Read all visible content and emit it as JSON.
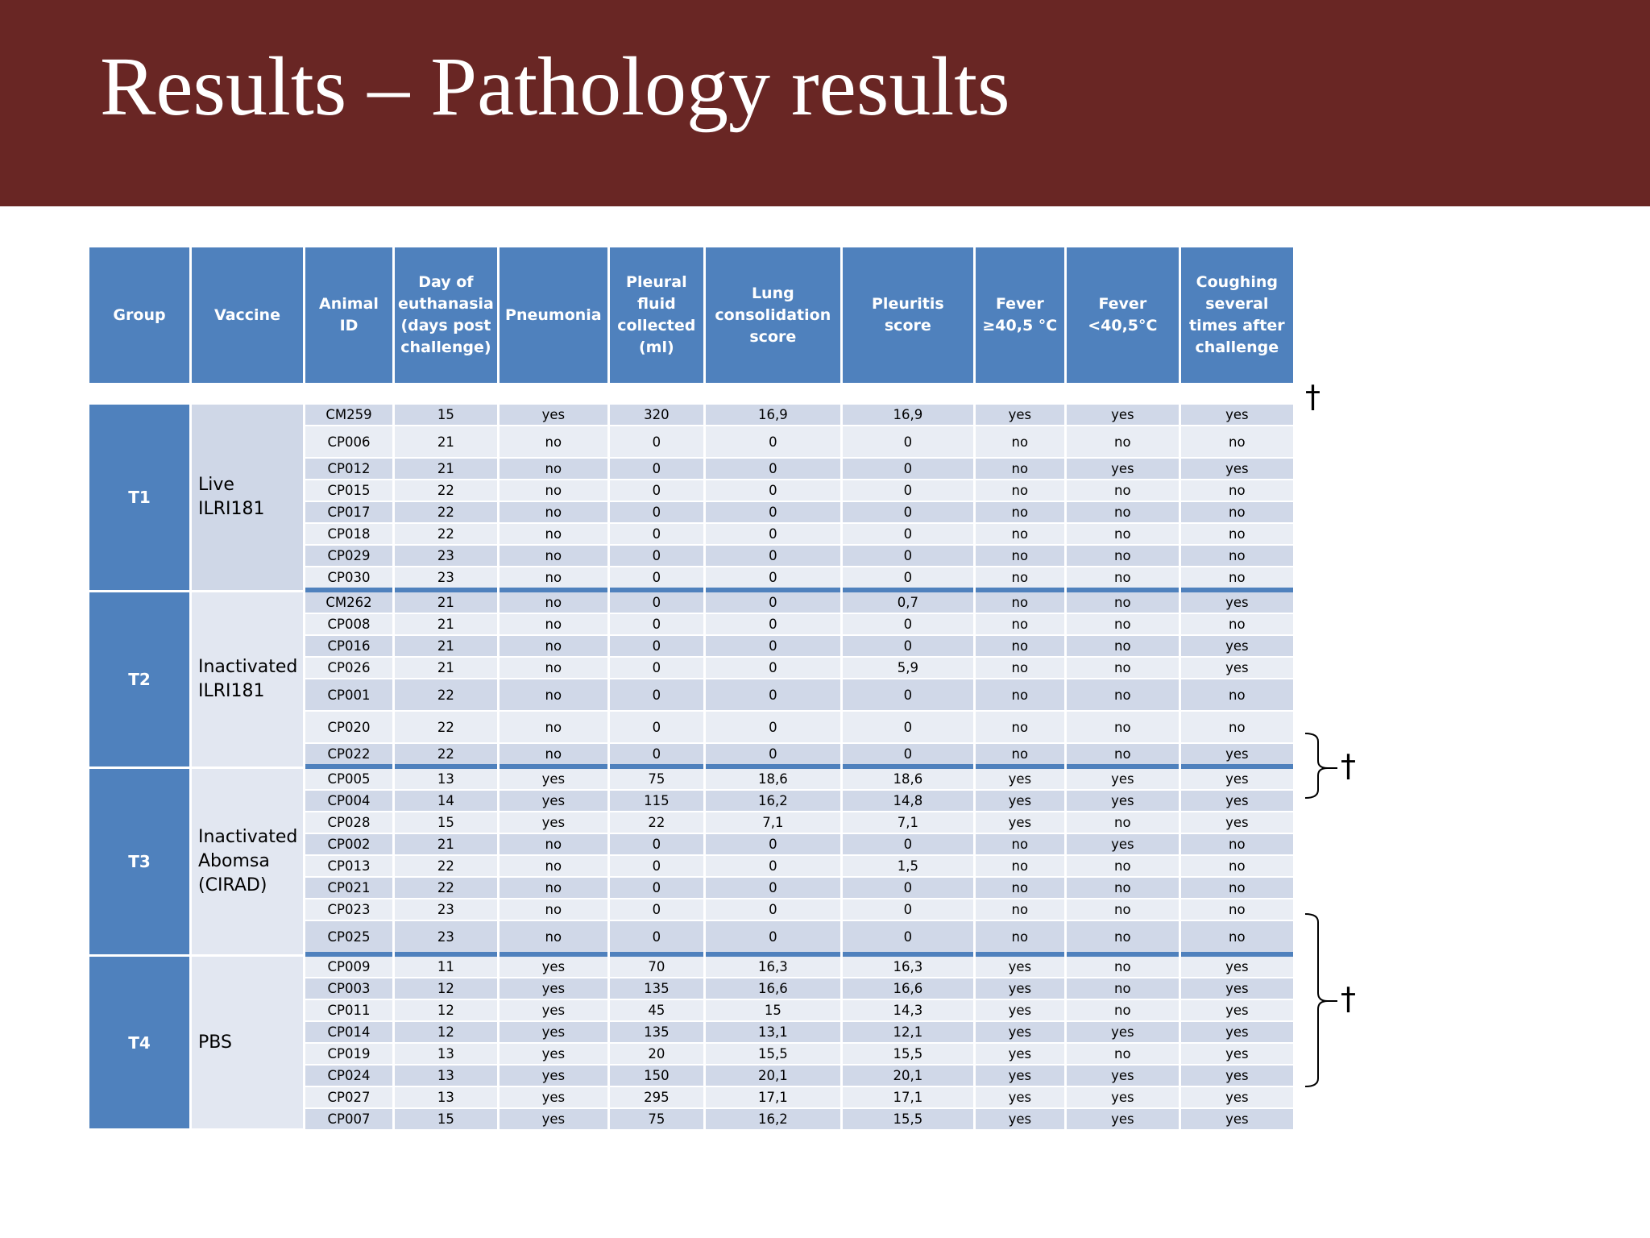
{
  "title": "Results – Pathology results",
  "table": {
    "headers": {
      "group": "Group",
      "vaccine": "Vaccine",
      "animal_id": "Animal ID",
      "day": "Day of euthanasia (days post challenge)",
      "pneumonia": "Pneumonia",
      "pleural": "Pleural fluid collected (ml)",
      "lung": "Lung consolidation score",
      "pleuritis": "Pleuritis score",
      "fever_high": "Fever ≥40,5 °C",
      "fever_low": "Fever <40,5°C",
      "coughing": "Coughing several times after challenge"
    },
    "groups": [
      {
        "group": "T1",
        "vaccine": "Live ILRI181",
        "rows": [
          [
            "CM259",
            "15",
            "yes",
            "320",
            "16,9",
            "16,9",
            "yes",
            "yes",
            "yes"
          ],
          [
            "CP006",
            "21",
            "no",
            "0",
            "0",
            "0",
            "no",
            "no",
            "no"
          ],
          [
            "CP012",
            "21",
            "no",
            "0",
            "0",
            "0",
            "no",
            "yes",
            "yes"
          ],
          [
            "CP015",
            "22",
            "no",
            "0",
            "0",
            "0",
            "no",
            "no",
            "no"
          ],
          [
            "CP017",
            "22",
            "no",
            "0",
            "0",
            "0",
            "no",
            "no",
            "no"
          ],
          [
            "CP018",
            "22",
            "no",
            "0",
            "0",
            "0",
            "no",
            "no",
            "no"
          ],
          [
            "CP029",
            "23",
            "no",
            "0",
            "0",
            "0",
            "no",
            "no",
            "no"
          ],
          [
            "CP030",
            "23",
            "no",
            "0",
            "0",
            "0",
            "no",
            "no",
            "no"
          ]
        ]
      },
      {
        "group": "T2",
        "vaccine": "Inactivated ILRI181",
        "rows": [
          [
            "CM262",
            "21",
            "no",
            "0",
            "0",
            "0,7",
            "no",
            "no",
            "yes"
          ],
          [
            "CP008",
            "21",
            "no",
            "0",
            "0",
            "0",
            "no",
            "no",
            "no"
          ],
          [
            "CP016",
            "21",
            "no",
            "0",
            "0",
            "0",
            "no",
            "no",
            "yes"
          ],
          [
            "CP026",
            "21",
            "no",
            "0",
            "0",
            "5,9",
            "no",
            "no",
            "yes"
          ],
          [
            "CP001",
            "22",
            "no",
            "0",
            "0",
            "0",
            "no",
            "no",
            "no"
          ],
          [
            "CP020",
            "22",
            "no",
            "0",
            "0",
            "0",
            "no",
            "no",
            "no"
          ],
          [
            "CP022",
            "22",
            "no",
            "0",
            "0",
            "0",
            "no",
            "no",
            "yes"
          ]
        ]
      },
      {
        "group": "T3",
        "vaccine": "Inactivated Abomsa (CIRAD)",
        "rows": [
          [
            "CP005",
            "13",
            "yes",
            "75",
            "18,6",
            "18,6",
            "yes",
            "yes",
            "yes"
          ],
          [
            "CP004",
            "14",
            "yes",
            "115",
            "16,2",
            "14,8",
            "yes",
            "yes",
            "yes"
          ],
          [
            "CP028",
            "15",
            "yes",
            "22",
            "7,1",
            "7,1",
            "yes",
            "no",
            "yes"
          ],
          [
            "CP002",
            "21",
            "no",
            "0",
            "0",
            "0",
            "no",
            "yes",
            "no"
          ],
          [
            "CP013",
            "22",
            "no",
            "0",
            "0",
            "1,5",
            "no",
            "no",
            "no"
          ],
          [
            "CP021",
            "22",
            "no",
            "0",
            "0",
            "0",
            "no",
            "no",
            "no"
          ],
          [
            "CP023",
            "23",
            "no",
            "0",
            "0",
            "0",
            "no",
            "no",
            "no"
          ],
          [
            "CP025",
            "23",
            "no",
            "0",
            "0",
            "0",
            "no",
            "no",
            "no"
          ]
        ]
      },
      {
        "group": "T4",
        "vaccine": "PBS",
        "rows": [
          [
            "CP009",
            "11",
            "yes",
            "70",
            "16,3",
            "16,3",
            "yes",
            "no",
            "yes"
          ],
          [
            "CP003",
            "12",
            "yes",
            "135",
            "16,6",
            "16,6",
            "yes",
            "no",
            "yes"
          ],
          [
            "CP011",
            "12",
            "yes",
            "45",
            "15",
            "14,3",
            "yes",
            "no",
            "yes"
          ],
          [
            "CP014",
            "12",
            "yes",
            "135",
            "13,1",
            "12,1",
            "yes",
            "yes",
            "yes"
          ],
          [
            "CP019",
            "13",
            "yes",
            "20",
            "15,5",
            "15,5",
            "yes",
            "no",
            "yes"
          ],
          [
            "CP024",
            "13",
            "yes",
            "150",
            "20,1",
            "20,1",
            "yes",
            "yes",
            "yes"
          ],
          [
            "CP027",
            "13",
            "yes",
            "295",
            "17,1",
            "17,1",
            "yes",
            "yes",
            "yes"
          ],
          [
            "CP007",
            "15",
            "yes",
            "75",
            "16,2",
            "15,5",
            "yes",
            "yes",
            "yes"
          ]
        ]
      }
    ]
  },
  "annotations": {
    "dagger": "†"
  }
}
